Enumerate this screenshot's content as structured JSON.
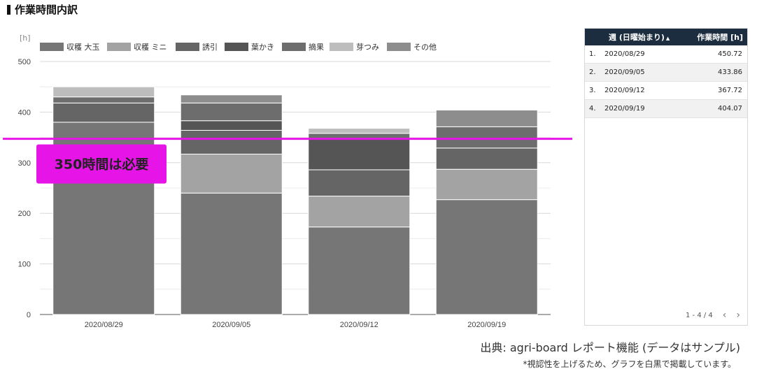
{
  "page": {
    "title": "作業時間内訳"
  },
  "chart_data": {
    "type": "bar",
    "stacked": true,
    "unit_label": "[h]",
    "categories": [
      "2020/08/29",
      "2020/09/05",
      "2020/09/12",
      "2020/09/19"
    ],
    "series": [
      {
        "name": "収穫 大玉",
        "color": "#767676",
        "values": [
          380,
          240,
          173,
          227
        ]
      },
      {
        "name": "収穫 ミニ",
        "color": "#a3a3a3",
        "values": [
          0,
          77,
          61,
          60
        ]
      },
      {
        "name": "誘引",
        "color": "#656565",
        "values": [
          38,
          47,
          52,
          42
        ]
      },
      {
        "name": "葉かき",
        "color": "#555555",
        "values": [
          0,
          19,
          60,
          0
        ]
      },
      {
        "name": "摘果",
        "color": "#6d6d6d",
        "values": [
          12,
          35,
          12,
          42
        ]
      },
      {
        "name": "芽つみ",
        "color": "#bdbdbd",
        "values": [
          20,
          0,
          10,
          0
        ]
      },
      {
        "name": "その他",
        "color": "#8d8d8d",
        "values": [
          0,
          16,
          0,
          33
        ]
      }
    ],
    "ylim": [
      0,
      500
    ],
    "yticks": [
      0,
      100,
      200,
      300,
      400,
      500
    ],
    "grid": true,
    "legend_position": "top",
    "reference_line": {
      "value": 350,
      "label": "350時間は必要",
      "color": "#e614e6"
    }
  },
  "table": {
    "header_week": "週 (日曜始まり)",
    "sort_icon": "▲",
    "header_hours": "作業時間 [h]",
    "rows": [
      {
        "index": "1.",
        "week": "2020/08/29",
        "hours": "450.72"
      },
      {
        "index": "2.",
        "week": "2020/09/05",
        "hours": "433.86"
      },
      {
        "index": "3.",
        "week": "2020/09/12",
        "hours": "367.72"
      },
      {
        "index": "4.",
        "week": "2020/09/19",
        "hours": "404.07"
      }
    ],
    "pagination": "1 - 4 / 4",
    "prev_icon": "‹",
    "next_icon": "›"
  },
  "footer": {
    "source": "出典: agri-board レポート機能 (データはサンプル)",
    "note": "*視認性を上げるため、グラフを白黒で掲載しています。"
  }
}
